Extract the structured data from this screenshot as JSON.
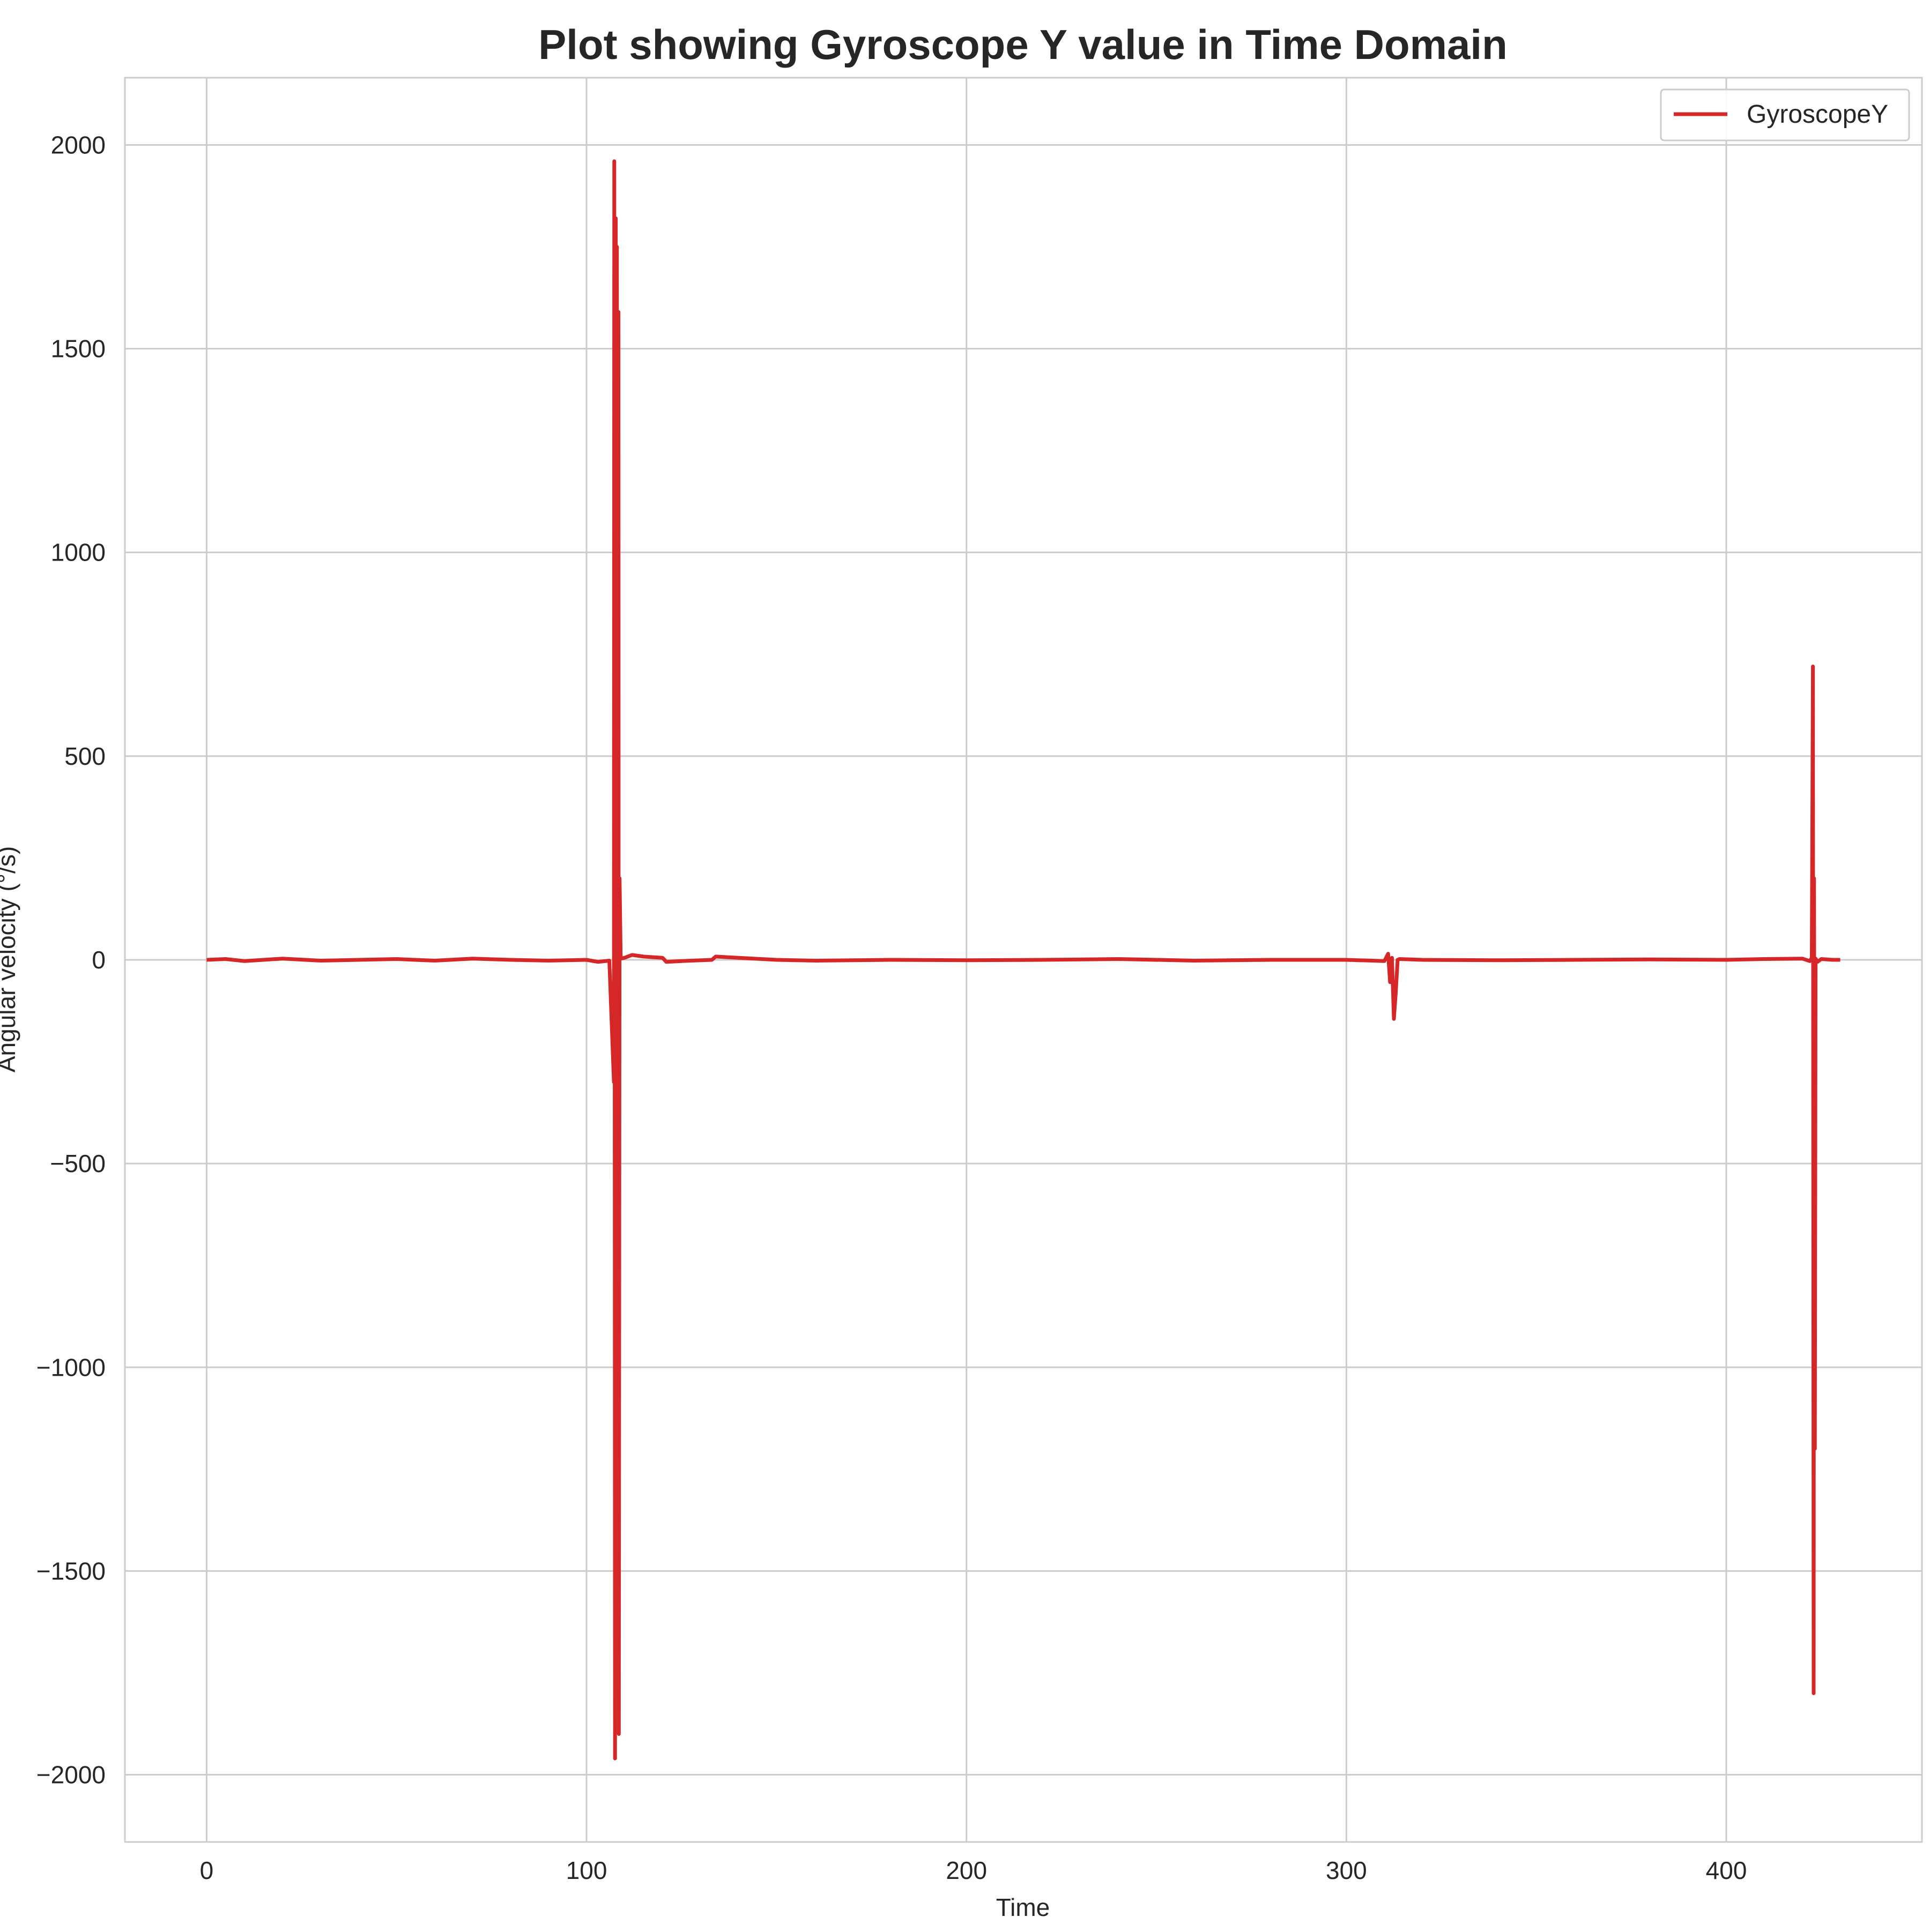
{
  "chart_data": {
    "type": "line",
    "title": "Plot showing Gyroscope Y value in Time Domain",
    "xlabel": "Time",
    "ylabel": "Angular velocity (°/s)",
    "xlim": [
      -21.5,
      451.5
    ],
    "ylim": [
      -2165,
      2165
    ],
    "x_ticks": [
      0,
      100,
      200,
      300,
      400
    ],
    "y_ticks": [
      2000,
      1500,
      1000,
      500,
      0,
      -500,
      -1000,
      -1500,
      -2000
    ],
    "x_tick_labels": [
      "0",
      "100",
      "200",
      "300",
      "400"
    ],
    "y_tick_labels": [
      "2000",
      "1500",
      "1000",
      "500",
      "0",
      "−500",
      "−1000",
      "−1500",
      "−2000"
    ],
    "grid": true,
    "legend": {
      "position": "top-right",
      "entries": [
        "GyroscopeY"
      ]
    },
    "series": [
      {
        "name": "GyroscopeY",
        "color": "#d62728",
        "x": [
          0,
          5,
          10,
          15,
          20,
          30,
          40,
          50,
          60,
          70,
          80,
          90,
          100,
          103,
          106,
          107.2,
          107.3,
          107.5,
          107.7,
          107.9,
          108.0,
          108.2,
          108.4,
          108.5,
          108.7,
          109,
          110,
          112,
          115,
          120,
          121,
          125,
          133,
          134,
          140,
          150,
          160,
          180,
          200,
          220,
          240,
          260,
          280,
          300,
          310,
          311,
          311.5,
          312,
          312.5,
          313,
          313.5,
          314,
          320,
          340,
          360,
          380,
          400,
          410,
          420,
          422,
          422.5,
          422.8,
          423,
          423.1,
          423.3,
          423.5,
          424,
          425,
          428,
          430
        ],
        "y": [
          0,
          2,
          -3,
          0,
          3,
          -2,
          0,
          2,
          -2,
          3,
          0,
          -2,
          0,
          -5,
          -2,
          -300,
          1960,
          -1960,
          1820,
          -1700,
          1750,
          -1600,
          1590,
          -1900,
          200,
          3,
          5,
          12,
          8,
          5,
          -5,
          -3,
          0,
          8,
          5,
          0,
          -2,
          0,
          -1,
          0,
          2,
          -2,
          0,
          0,
          -3,
          15,
          -55,
          5,
          -145,
          -80,
          0,
          2,
          0,
          -1,
          0,
          1,
          0,
          2,
          3,
          -3,
          5,
          720,
          -1800,
          200,
          -1200,
          3,
          -5,
          2,
          0,
          0
        ]
      }
    ]
  }
}
